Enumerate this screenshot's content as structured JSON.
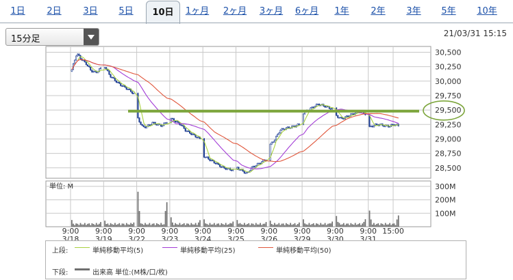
{
  "tabs": [
    "1日",
    "2日",
    "3日",
    "5日",
    "10日",
    "1ヶ月",
    "2ヶ月",
    "3ヶ月",
    "6ヶ月",
    "1年",
    "2年",
    "3年",
    "5年",
    "10年"
  ],
  "active_tab": "10日",
  "interval_select": {
    "value": "15分足"
  },
  "timestamp": "21/03/31 15:15",
  "colors": {
    "ma5": "#a9d13f",
    "ma25": "#a23bd6",
    "ma50": "#e0553a",
    "resistance": "#7ca53b",
    "circle": "#7ca53b",
    "volume": "#6f6f6f",
    "up": "#ffffff",
    "down": "#1f3f94"
  },
  "legend": {
    "upper_label": "上段:",
    "lower_label": "下段:",
    "ma5": "単純移動平均(5)",
    "ma25": "単純移動平均(25)",
    "ma50": "単純移動平均(50)",
    "volume": "出来高 単位:(M株/口/枚)"
  },
  "chart_data": {
    "type": "candlestick",
    "price_axis": {
      "ticks": [
        30500,
        30250,
        30000,
        29750,
        29500,
        29250,
        29000,
        28750,
        28500
      ],
      "labels": [
        "30,500",
        "30,250",
        "30,000",
        "29,750",
        "29,500",
        "29,250",
        "29,000",
        "28,750",
        "28,500"
      ],
      "ylim": [
        28320,
        30600
      ]
    },
    "volume_axis": {
      "unit_label": "単位: M",
      "ticks": [
        300,
        200,
        100
      ],
      "labels": [
        "300M",
        "200M",
        "100M"
      ],
      "ylim": [
        0,
        340
      ]
    },
    "x_labels": [
      {
        "time": "9:00",
        "date": "3/18"
      },
      {
        "time": "9:00",
        "date": "3/19"
      },
      {
        "time": "9:00",
        "date": "3/22"
      },
      {
        "time": "9:00",
        "date": "3/23"
      },
      {
        "time": "9:00",
        "date": "3/24"
      },
      {
        "time": "9:00",
        "date": "3/25"
      },
      {
        "time": "9:00",
        "date": "3/26"
      },
      {
        "time": "9:00",
        "date": "3/29"
      },
      {
        "time": "9:00",
        "date": "3/30"
      },
      {
        "time": "9:00",
        "date": "3/31"
      },
      {
        "time": "15:00",
        "date": ""
      }
    ],
    "bars_per_day": 21,
    "close_anchors": [
      [
        30200,
        30480,
        30380,
        30300,
        30180,
        30150,
        30220
      ],
      [
        30250,
        30100,
        30020,
        29950,
        29900,
        29850,
        29780
      ],
      [
        29350,
        29200,
        29220,
        29280,
        29250,
        29230,
        29300
      ],
      [
        29350,
        29300,
        29250,
        29150,
        29100,
        29050,
        29000
      ],
      [
        28700,
        28650,
        28600,
        28550,
        28500,
        28480,
        28460
      ],
      [
        28500,
        28450,
        28400,
        28500,
        28550,
        28600,
        28650
      ],
      [
        28900,
        29000,
        29150,
        29180,
        29200,
        29220,
        29250
      ],
      [
        29450,
        29500,
        29550,
        29600,
        29580,
        29550,
        29520
      ],
      [
        29400,
        29350,
        29380,
        29420,
        29450,
        29480,
        29430
      ],
      [
        29200,
        29240,
        29250,
        29230,
        29220,
        29250,
        29230
      ]
    ],
    "volume_spikes": [
      50,
      45,
      260,
      70,
      55,
      50,
      45,
      55,
      80,
      120
    ],
    "volume_base": 12,
    "resistance_level": 29480
  }
}
